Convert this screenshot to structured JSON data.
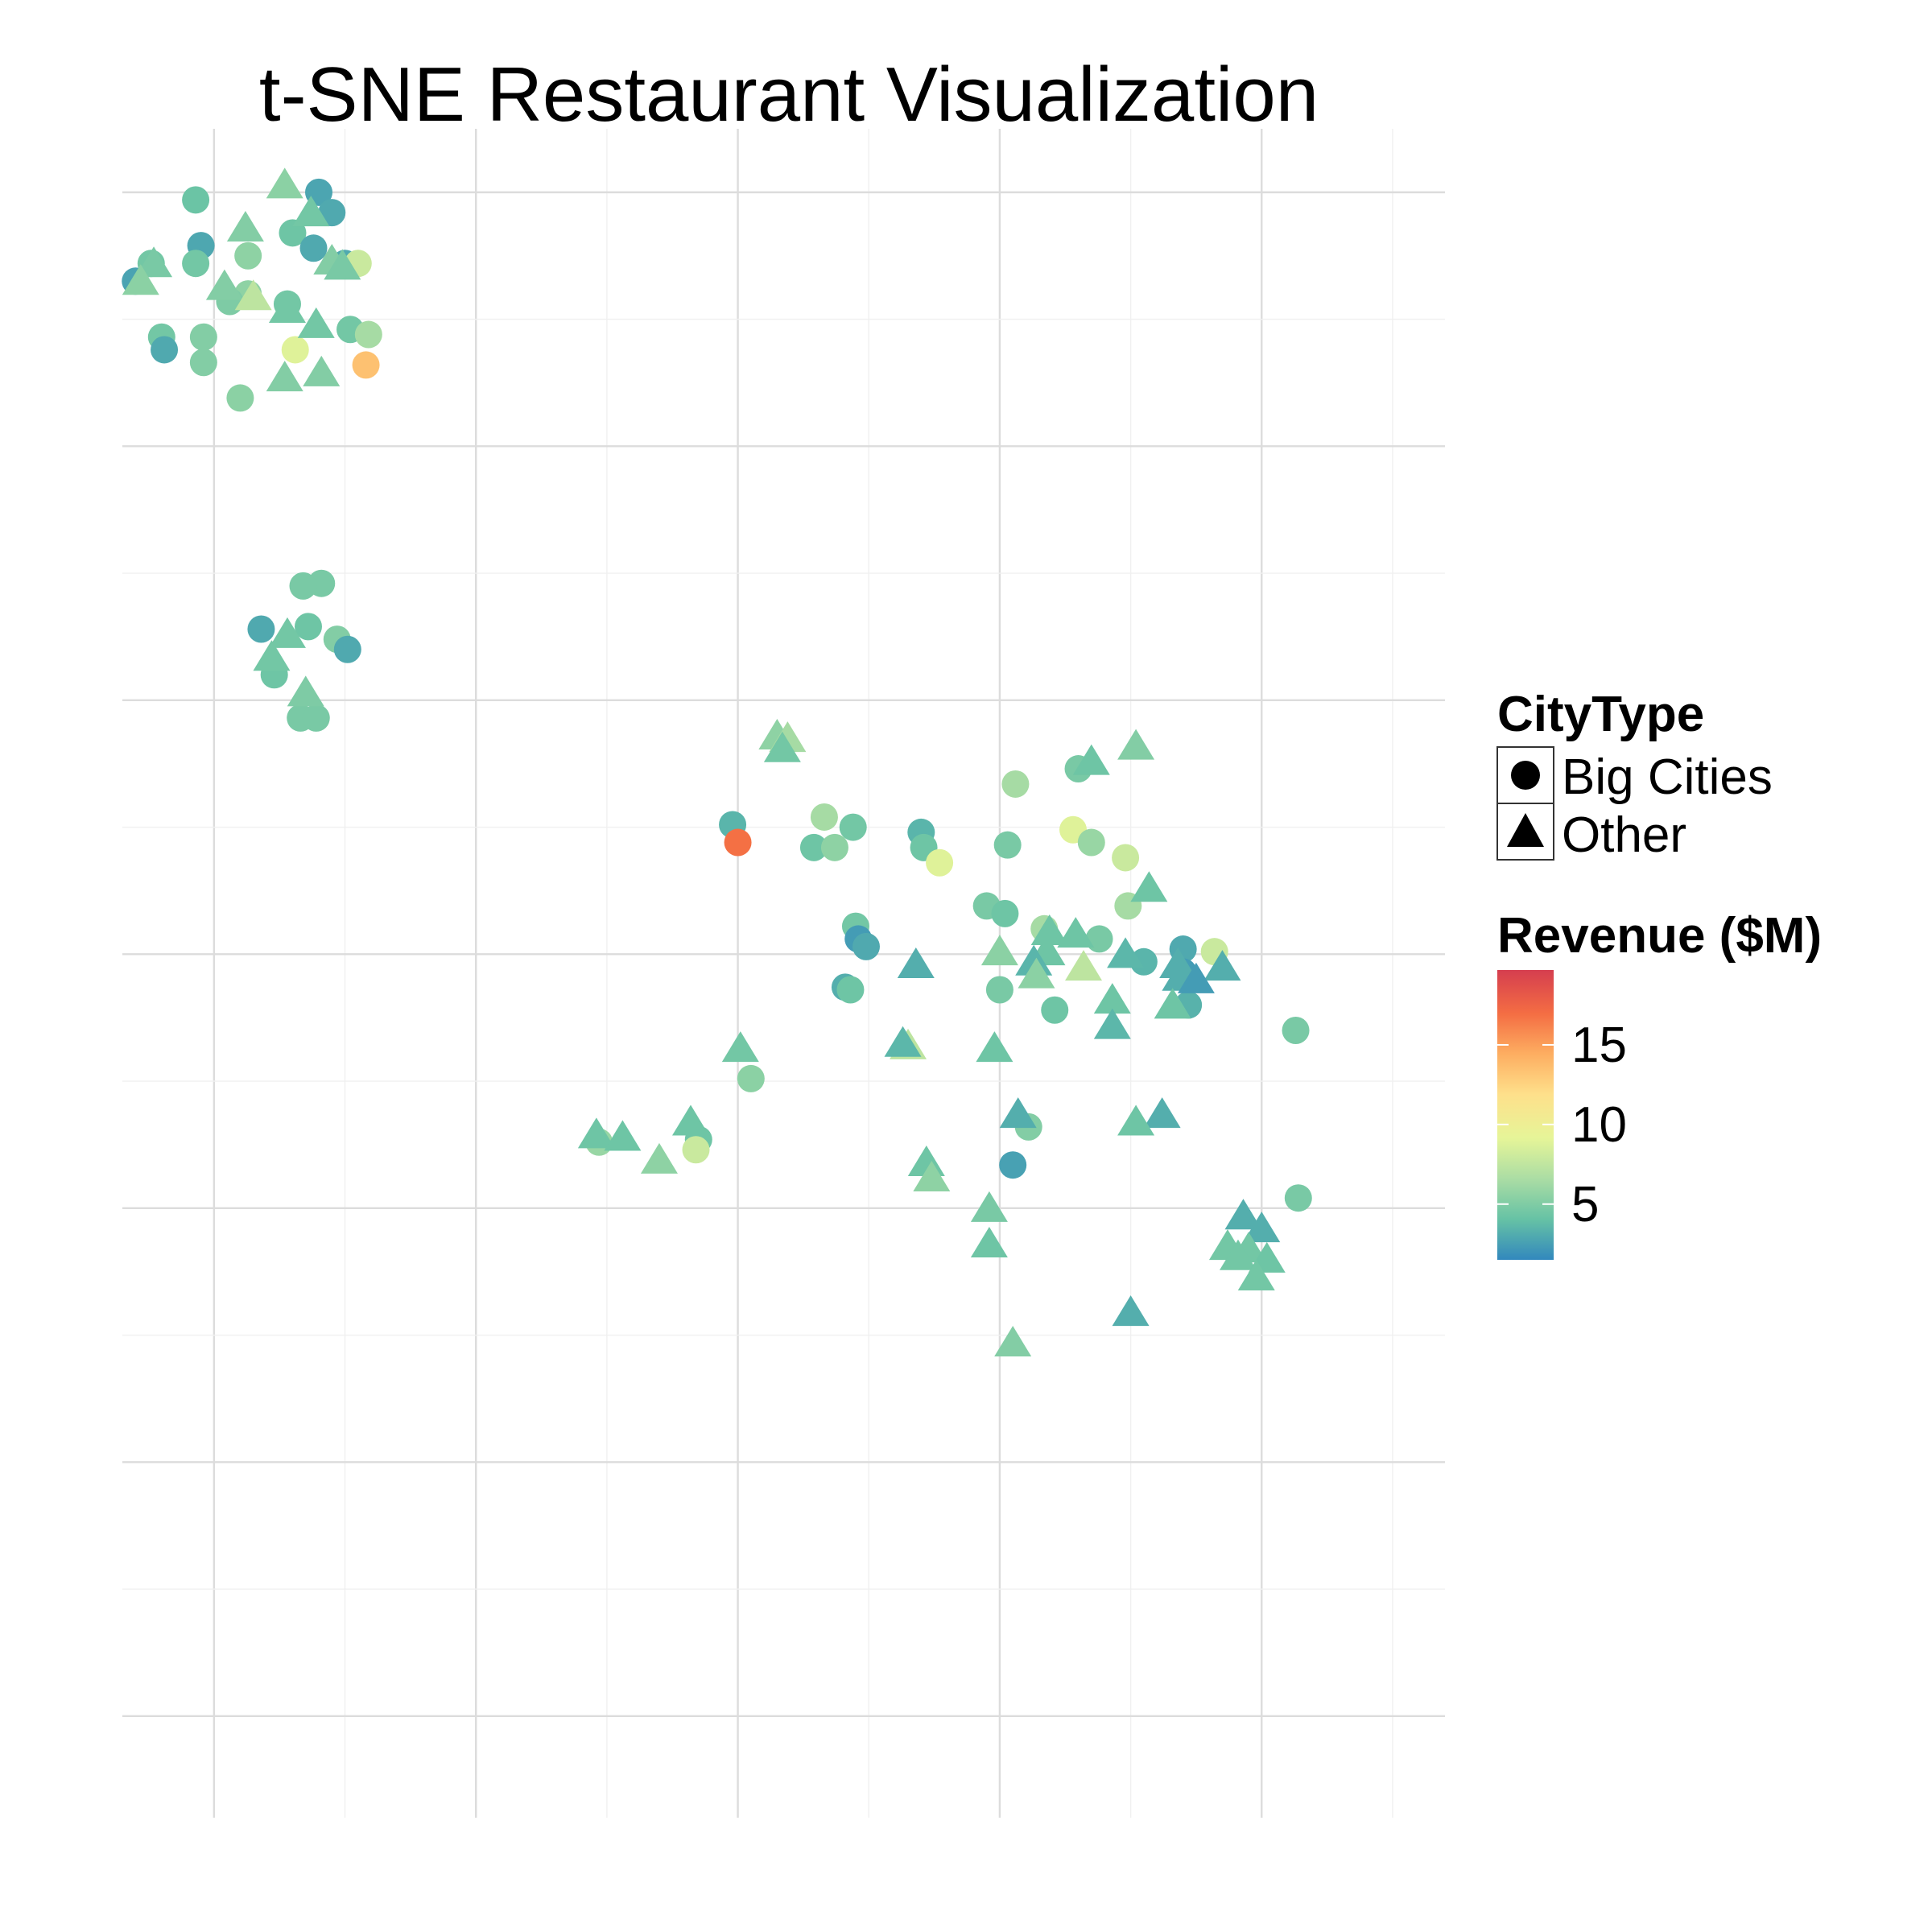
{
  "chart_data": {
    "type": "scatter",
    "title": "t-SNE Restaurant Visualization",
    "xlabel": "",
    "ylabel": "",
    "xlim": [
      -1.35,
      3.7
    ],
    "ylim": [
      -3.4,
      3.25
    ],
    "grid": true,
    "legend_placement": "right",
    "shape_legend": {
      "title": "CityType",
      "items": [
        {
          "label": "Big Cities",
          "shape": "circle"
        },
        {
          "label": "Other",
          "shape": "triangle"
        }
      ]
    },
    "color_legend": {
      "title": "Revenue ($M)",
      "min": 1.5,
      "max": 19.7,
      "ticks": [
        5,
        10,
        15
      ],
      "palette": [
        "#3288bd",
        "#66c2a5",
        "#abdda4",
        "#e6f598",
        "#fee08b",
        "#fdae61",
        "#f46d43",
        "#d53e4f"
      ]
    },
    "series": [
      {
        "name": "Big Cities",
        "shape": "circle",
        "points": [
          {
            "x": -0.6,
            "y": 3.0,
            "rev": 2.8
          },
          {
            "x": -0.55,
            "y": 2.92,
            "rev": 3.0
          },
          {
            "x": -1.07,
            "y": 2.97,
            "rev": 4.3
          },
          {
            "x": -0.7,
            "y": 2.84,
            "rev": 4.4
          },
          {
            "x": -1.05,
            "y": 2.79,
            "rev": 2.9
          },
          {
            "x": -0.62,
            "y": 2.78,
            "rev": 3.0
          },
          {
            "x": -0.87,
            "y": 2.75,
            "rev": 5.6
          },
          {
            "x": -0.5,
            "y": 2.72,
            "rev": 3.0
          },
          {
            "x": -0.45,
            "y": 2.72,
            "rev": 8.0
          },
          {
            "x": -1.24,
            "y": 2.72,
            "rev": 4.6
          },
          {
            "x": -1.07,
            "y": 2.72,
            "rev": 4.6
          },
          {
            "x": -1.3,
            "y": 2.65,
            "rev": 2.7
          },
          {
            "x": -0.87,
            "y": 2.6,
            "rev": 5.6
          },
          {
            "x": -0.94,
            "y": 2.57,
            "rev": 5.0
          },
          {
            "x": -0.72,
            "y": 2.56,
            "rev": 4.6
          },
          {
            "x": -0.48,
            "y": 2.46,
            "rev": 4.6
          },
          {
            "x": -1.2,
            "y": 2.43,
            "rev": 4.6
          },
          {
            "x": -0.41,
            "y": 2.44,
            "rev": 6.5
          },
          {
            "x": -1.04,
            "y": 2.43,
            "rev": 5.2
          },
          {
            "x": -1.19,
            "y": 2.38,
            "rev": 3.0
          },
          {
            "x": -0.69,
            "y": 2.38,
            "rev": 9.0
          },
          {
            "x": -1.04,
            "y": 2.33,
            "rev": 5.2
          },
          {
            "x": -0.42,
            "y": 2.32,
            "rev": 13.5
          },
          {
            "x": -0.9,
            "y": 2.19,
            "rev": 5.5
          },
          {
            "x": -0.59,
            "y": 1.46,
            "rev": 4.8
          },
          {
            "x": -0.66,
            "y": 1.45,
            "rev": 4.8
          },
          {
            "x": -0.82,
            "y": 1.28,
            "rev": 3.0
          },
          {
            "x": -0.64,
            "y": 1.29,
            "rev": 4.4
          },
          {
            "x": -0.53,
            "y": 1.24,
            "rev": 5.2
          },
          {
            "x": -0.49,
            "y": 1.2,
            "rev": 3.0
          },
          {
            "x": -0.77,
            "y": 1.1,
            "rev": 4.4
          },
          {
            "x": -0.67,
            "y": 0.93,
            "rev": 4.8
          },
          {
            "x": -0.61,
            "y": 0.93,
            "rev": 4.8
          },
          {
            "x": 2.3,
            "y": 0.73,
            "rev": 4.8
          },
          {
            "x": 2.06,
            "y": 0.67,
            "rev": 6.5
          },
          {
            "x": 1.33,
            "y": 0.54,
            "rev": 6.5
          },
          {
            "x": 1.44,
            "y": 0.5,
            "rev": 4.6
          },
          {
            "x": 1.7,
            "y": 0.48,
            "rev": 3.5
          },
          {
            "x": 0.98,
            "y": 0.51,
            "rev": 3.5
          },
          {
            "x": 2.28,
            "y": 0.49,
            "rev": 9.0
          },
          {
            "x": 2.35,
            "y": 0.44,
            "rev": 6.0
          },
          {
            "x": 1.0,
            "y": 0.44,
            "rev": 17.0
          },
          {
            "x": 1.29,
            "y": 0.42,
            "rev": 4.4
          },
          {
            "x": 1.37,
            "y": 0.42,
            "rev": 5.6
          },
          {
            "x": 1.71,
            "y": 0.42,
            "rev": 4.4
          },
          {
            "x": 2.03,
            "y": 0.43,
            "rev": 4.8
          },
          {
            "x": 2.48,
            "y": 0.38,
            "rev": 8.0
          },
          {
            "x": 1.77,
            "y": 0.36,
            "rev": 9.0
          },
          {
            "x": 1.95,
            "y": 0.19,
            "rev": 4.8
          },
          {
            "x": 2.02,
            "y": 0.16,
            "rev": 4.4
          },
          {
            "x": 2.49,
            "y": 0.19,
            "rev": 6.5
          },
          {
            "x": 2.17,
            "y": 0.1,
            "rev": 6.5
          },
          {
            "x": 1.45,
            "y": 0.11,
            "rev": 4.6
          },
          {
            "x": 2.38,
            "y": 0.06,
            "rev": 4.8
          },
          {
            "x": 1.46,
            "y": 0.06,
            "rev": 2.4
          },
          {
            "x": 1.49,
            "y": 0.03,
            "rev": 3.0
          },
          {
            "x": 2.7,
            "y": 0.02,
            "rev": 3.0
          },
          {
            "x": 2.82,
            "y": 0.01,
            "rev": 8.0
          },
          {
            "x": 2.55,
            "y": -0.03,
            "rev": 3.5
          },
          {
            "x": 2.7,
            "y": -0.07,
            "rev": 2.4
          },
          {
            "x": 1.41,
            "y": -0.13,
            "rev": 3.2
          },
          {
            "x": 1.43,
            "y": -0.14,
            "rev": 4.4
          },
          {
            "x": 2.0,
            "y": -0.14,
            "rev": 4.8
          },
          {
            "x": 2.21,
            "y": -0.22,
            "rev": 4.4
          },
          {
            "x": 2.72,
            "y": -0.2,
            "rev": 3.4
          },
          {
            "x": 3.13,
            "y": -0.3,
            "rev": 4.8
          },
          {
            "x": 1.05,
            "y": -0.49,
            "rev": 5.5
          },
          {
            "x": 2.11,
            "y": -0.68,
            "rev": 5.2
          },
          {
            "x": 0.47,
            "y": -0.74,
            "rev": 6.0
          },
          {
            "x": 0.85,
            "y": -0.73,
            "rev": 4.4
          },
          {
            "x": 0.84,
            "y": -0.77,
            "rev": 8.0
          },
          {
            "x": 2.05,
            "y": -0.83,
            "rev": 2.6
          },
          {
            "x": 3.14,
            "y": -0.96,
            "rev": 4.8
          }
        ]
      },
      {
        "name": "Other",
        "shape": "triangle",
        "points": [
          {
            "x": -0.73,
            "y": 3.03,
            "rev": 5.5
          },
          {
            "x": -0.63,
            "y": 2.92,
            "rev": 4.6
          },
          {
            "x": -0.88,
            "y": 2.86,
            "rev": 5.2
          },
          {
            "x": -0.55,
            "y": 2.73,
            "rev": 5.2
          },
          {
            "x": -0.51,
            "y": 2.71,
            "rev": 4.8
          },
          {
            "x": -1.23,
            "y": 2.72,
            "rev": 4.8
          },
          {
            "x": -1.28,
            "y": 2.65,
            "rev": 5.5
          },
          {
            "x": -0.96,
            "y": 2.63,
            "rev": 5.2
          },
          {
            "x": -0.85,
            "y": 2.59,
            "rev": 7.5
          },
          {
            "x": -0.72,
            "y": 2.54,
            "rev": 4.6
          },
          {
            "x": -0.61,
            "y": 2.48,
            "rev": 4.6
          },
          {
            "x": -0.59,
            "y": 2.29,
            "rev": 5.2
          },
          {
            "x": -0.73,
            "y": 2.27,
            "rev": 5.2
          },
          {
            "x": -0.72,
            "y": 1.26,
            "rev": 4.6
          },
          {
            "x": -0.78,
            "y": 1.17,
            "rev": 4.6
          },
          {
            "x": -0.65,
            "y": 1.03,
            "rev": 5.0
          },
          {
            "x": 1.15,
            "y": 0.86,
            "rev": 5.6
          },
          {
            "x": 1.19,
            "y": 0.85,
            "rev": 6.5
          },
          {
            "x": 1.17,
            "y": 0.81,
            "rev": 4.6
          },
          {
            "x": 2.52,
            "y": 0.82,
            "rev": 5.2
          },
          {
            "x": 2.35,
            "y": 0.76,
            "rev": 4.4
          },
          {
            "x": 2.57,
            "y": 0.26,
            "rev": 4.4
          },
          {
            "x": 2.19,
            "y": 0.09,
            "rev": 4.4
          },
          {
            "x": 2.29,
            "y": 0.08,
            "rev": 4.4
          },
          {
            "x": 2.0,
            "y": 0.01,
            "rev": 5.5
          },
          {
            "x": 2.18,
            "y": 0.01,
            "rev": 4.4
          },
          {
            "x": 2.13,
            "y": -0.03,
            "rev": 3.5
          },
          {
            "x": 2.48,
            "y": 0.0,
            "rev": 3.6
          },
          {
            "x": 2.68,
            "y": -0.04,
            "rev": 3.2
          },
          {
            "x": 2.32,
            "y": -0.05,
            "rev": 7.5
          },
          {
            "x": 2.85,
            "y": -0.05,
            "rev": 3.2
          },
          {
            "x": 2.14,
            "y": -0.08,
            "rev": 5.5
          },
          {
            "x": 2.69,
            "y": -0.09,
            "rev": 3.2
          },
          {
            "x": 2.75,
            "y": -0.1,
            "rev": 2.4
          },
          {
            "x": 1.68,
            "y": -0.04,
            "rev": 3.2
          },
          {
            "x": 2.43,
            "y": -0.18,
            "rev": 4.4
          },
          {
            "x": 2.66,
            "y": -0.2,
            "rev": 4.4
          },
          {
            "x": 2.43,
            "y": -0.28,
            "rev": 3.6
          },
          {
            "x": 1.65,
            "y": -0.36,
            "rev": 7.5
          },
          {
            "x": 1.63,
            "y": -0.35,
            "rev": 3.6
          },
          {
            "x": 1.98,
            "y": -0.37,
            "rev": 4.4
          },
          {
            "x": 1.01,
            "y": -0.37,
            "rev": 4.6
          },
          {
            "x": 2.07,
            "y": -0.63,
            "rev": 3.2
          },
          {
            "x": 2.62,
            "y": -0.63,
            "rev": 3.2
          },
          {
            "x": 2.52,
            "y": -0.66,
            "rev": 4.4
          },
          {
            "x": 0.82,
            "y": -0.66,
            "rev": 4.4
          },
          {
            "x": 0.46,
            "y": -0.71,
            "rev": 4.4
          },
          {
            "x": 0.56,
            "y": -0.72,
            "rev": 4.4
          },
          {
            "x": 0.7,
            "y": -0.81,
            "rev": 5.6
          },
          {
            "x": 1.72,
            "y": -0.82,
            "rev": 4.4
          },
          {
            "x": 1.74,
            "y": -0.88,
            "rev": 5.6
          },
          {
            "x": 1.96,
            "y": -1.0,
            "rev": 4.8
          },
          {
            "x": 2.93,
            "y": -1.03,
            "rev": 3.2
          },
          {
            "x": 3.0,
            "y": -1.08,
            "rev": 3.2
          },
          {
            "x": 2.87,
            "y": -1.15,
            "rev": 4.6
          },
          {
            "x": 2.95,
            "y": -1.16,
            "rev": 4.6
          },
          {
            "x": 1.96,
            "y": -1.14,
            "rev": 4.4
          },
          {
            "x": 2.91,
            "y": -1.19,
            "rev": 4.6
          },
          {
            "x": 3.02,
            "y": -1.2,
            "rev": 4.4
          },
          {
            "x": 2.98,
            "y": -1.27,
            "rev": 4.6
          },
          {
            "x": 2.5,
            "y": -1.41,
            "rev": 3.2
          },
          {
            "x": 2.05,
            "y": -1.53,
            "rev": 5.2
          }
        ]
      }
    ]
  }
}
